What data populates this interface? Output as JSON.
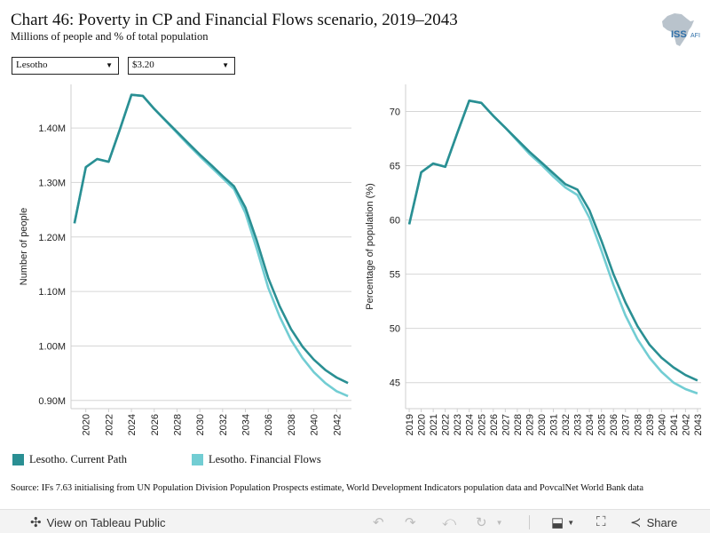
{
  "title": "Chart 46: Poverty in CP and Financial Flows scenario, 2019–2043",
  "subtitle": "Millions of people and % of total population",
  "logo_text": "ISS",
  "logo_sub": "AFI",
  "filters": {
    "country": "Lesotho",
    "threshold": "$3.20"
  },
  "colors": {
    "current_path": "#2a8f93",
    "financial_flows": "#72cdd3",
    "grid": "#d6d6d6"
  },
  "chart_data": [
    {
      "type": "line",
      "ylabel": "Number of people",
      "xlabel": "",
      "x": [
        2019,
        2020,
        2021,
        2022,
        2023,
        2024,
        2025,
        2026,
        2027,
        2028,
        2029,
        2030,
        2031,
        2032,
        2033,
        2034,
        2035,
        2036,
        2037,
        2038,
        2039,
        2040,
        2041,
        2042,
        2043
      ],
      "xticks": [
        "2020",
        "2022",
        "2024",
        "2026",
        "2028",
        "2030",
        "2032",
        "2034",
        "2036",
        "2038",
        "2040",
        "2042"
      ],
      "yticks": [
        "0.90M",
        "1.00M",
        "1.10M",
        "1.20M",
        "1.30M",
        "1.40M"
      ],
      "ytick_values": [
        0.9,
        1.0,
        1.1,
        1.2,
        1.3,
        1.4
      ],
      "ylim": [
        0.885,
        1.48
      ],
      "xlim": [
        2018.7,
        2043.3
      ],
      "series": [
        {
          "name": "Lesotho. Current Path",
          "values": [
            1.225,
            1.328,
            1.343,
            1.338,
            1.398,
            1.461,
            1.459,
            1.435,
            1.414,
            1.393,
            1.372,
            1.351,
            1.332,
            1.312,
            1.293,
            1.254,
            1.193,
            1.125,
            1.073,
            1.031,
            0.999,
            0.975,
            0.956,
            0.942,
            0.932
          ]
        },
        {
          "name": "Lesotho. Financial Flows",
          "values": [
            1.225,
            1.328,
            1.343,
            1.338,
            1.398,
            1.461,
            1.459,
            1.435,
            1.413,
            1.391,
            1.369,
            1.348,
            1.328,
            1.308,
            1.288,
            1.244,
            1.178,
            1.107,
            1.054,
            1.011,
            0.978,
            0.952,
            0.932,
            0.917,
            0.908
          ]
        }
      ]
    },
    {
      "type": "line",
      "ylabel": "Percentage of population (%)",
      "xlabel": "",
      "x": [
        2019,
        2020,
        2021,
        2022,
        2023,
        2024,
        2025,
        2026,
        2027,
        2028,
        2029,
        2030,
        2031,
        2032,
        2033,
        2034,
        2035,
        2036,
        2037,
        2038,
        2039,
        2040,
        2041,
        2042,
        2043
      ],
      "xticks": [
        "2019",
        "2020",
        "2021",
        "2022",
        "2023",
        "2024",
        "2025",
        "2026",
        "2027",
        "2028",
        "2029",
        "2030",
        "2031",
        "2032",
        "2033",
        "2034",
        "2035",
        "2036",
        "2037",
        "2038",
        "2039",
        "2040",
        "2041",
        "2042",
        "2043"
      ],
      "yticks": [
        "45",
        "50",
        "55",
        "60",
        "65",
        "70"
      ],
      "ytick_values": [
        45,
        50,
        55,
        60,
        65,
        70
      ],
      "ylim": [
        42.6,
        72.5
      ],
      "xlim": [
        2018.7,
        2043.3
      ],
      "series": [
        {
          "name": "Lesotho. Current Path",
          "values": [
            59.6,
            64.4,
            65.2,
            64.9,
            68.0,
            71.0,
            70.8,
            69.6,
            68.5,
            67.4,
            66.3,
            65.3,
            64.3,
            63.3,
            62.8,
            60.9,
            58.1,
            55.0,
            52.4,
            50.2,
            48.5,
            47.3,
            46.4,
            45.7,
            45.2
          ]
        },
        {
          "name": "Lesotho. Financial Flows",
          "values": [
            59.6,
            64.4,
            65.2,
            64.9,
            68.0,
            71.0,
            70.8,
            69.6,
            68.5,
            67.3,
            66.1,
            65.1,
            64.0,
            63.0,
            62.3,
            60.2,
            57.2,
            54.0,
            51.2,
            49.0,
            47.3,
            46.0,
            45.0,
            44.4,
            44.0
          ]
        }
      ]
    }
  ],
  "legend": [
    {
      "label": "Lesotho. Current Path"
    },
    {
      "label": "Lesotho. Financial Flows"
    }
  ],
  "source": "Source: IFs 7.63 initialising from UN Population Division Population Prospects estimate, World Development Indicators population data and PovcalNet World Bank data",
  "toolbar": {
    "view_label": "View on Tableau Public",
    "share_label": "Share"
  }
}
